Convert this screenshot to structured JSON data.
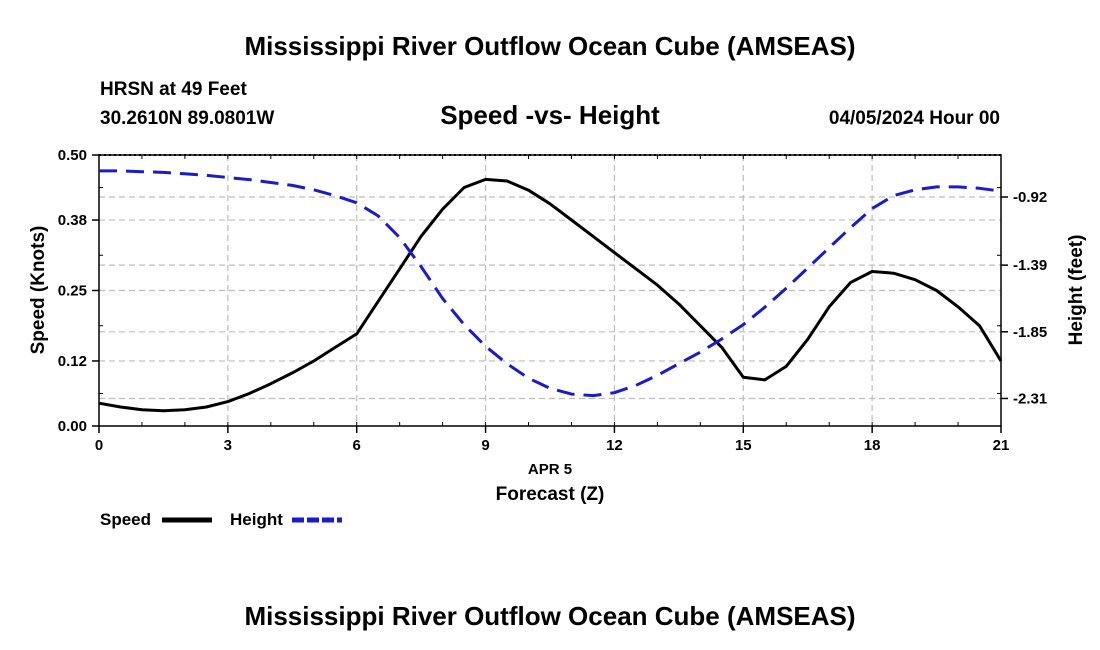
{
  "title": "Mississippi River Outflow Ocean Cube (AMSEAS)",
  "footer_title": "Mississippi River Outflow Ocean Cube (AMSEAS)",
  "station": "HRSN at 49 Feet",
  "coordinates": "30.2610N  89.0801W",
  "date_label": "04/05/2024 Hour 00",
  "colors": {
    "speed": "#000000",
    "height": "#1a1ad0",
    "grid": "#bdbdbd"
  },
  "chart_data": {
    "type": "line",
    "title": "Speed -vs- Height",
    "xlabel": "Forecast (Z)",
    "xlabel_date": "APR 5",
    "ylabel_left": "Speed (Knots)",
    "ylabel_right": "Height (feet)",
    "xlim": [
      0,
      21
    ],
    "x_ticks": [
      0,
      3,
      6,
      9,
      12,
      15,
      18,
      21
    ],
    "x_tick_labels": [
      "0",
      "3",
      "6",
      "9",
      "12",
      "15",
      "18",
      "21"
    ],
    "ylim_left": [
      0,
      0.5
    ],
    "y_left_ticks": [
      0,
      0.12,
      0.25,
      0.38,
      0.5
    ],
    "y_left_tick_labels": [
      "0.00",
      "0.12",
      "0.25",
      "0.38",
      "0.50"
    ],
    "ylim_right": [
      -2.5,
      -0.63
    ],
    "y_right_ticks": [
      -2.31,
      -1.85,
      -1.39,
      -0.92
    ],
    "y_right_tick_labels": [
      "-2.31",
      "-1.85",
      "-1.39",
      "-0.92"
    ],
    "grid": true,
    "legend_position": "bottom-left",
    "series": [
      {
        "name": "Speed",
        "axis": "left",
        "style": "solid",
        "x": [
          0,
          0.5,
          1,
          1.5,
          2,
          2.5,
          3,
          3.5,
          4,
          4.5,
          5,
          5.5,
          6,
          6.5,
          7,
          7.5,
          8,
          8.5,
          9,
          9.5,
          10,
          10.5,
          11,
          11.5,
          12,
          12.5,
          13,
          13.5,
          14,
          14.5,
          15,
          15.5,
          16,
          16.5,
          17,
          17.5,
          18,
          18.5,
          19,
          19.5,
          20,
          20.5,
          21
        ],
        "values": [
          0.042,
          0.035,
          0.03,
          0.028,
          0.03,
          0.035,
          0.045,
          0.06,
          0.078,
          0.098,
          0.12,
          0.145,
          0.17,
          0.23,
          0.29,
          0.35,
          0.4,
          0.44,
          0.455,
          0.452,
          0.435,
          0.41,
          0.38,
          0.35,
          0.32,
          0.29,
          0.26,
          0.225,
          0.185,
          0.145,
          0.09,
          0.085,
          0.11,
          0.16,
          0.22,
          0.265,
          0.285,
          0.282,
          0.27,
          0.25,
          0.22,
          0.185,
          0.12
        ]
      },
      {
        "name": "Height",
        "axis": "right",
        "style": "dashed",
        "x": [
          0,
          0.5,
          1,
          1.5,
          2,
          2.5,
          3,
          3.5,
          4,
          4.5,
          5,
          5.5,
          6,
          6.5,
          7,
          7.5,
          8,
          8.5,
          9,
          9.5,
          10,
          10.5,
          11,
          11.5,
          12,
          12.5,
          13,
          13.5,
          14,
          14.5,
          15,
          15.5,
          16,
          16.5,
          17,
          17.5,
          18,
          18.5,
          19,
          19.5,
          20,
          20.5,
          21
        ],
        "values": [
          -0.74,
          -0.74,
          -0.745,
          -0.75,
          -0.76,
          -0.77,
          -0.785,
          -0.8,
          -0.82,
          -0.84,
          -0.87,
          -0.91,
          -0.96,
          -1.05,
          -1.2,
          -1.4,
          -1.62,
          -1.8,
          -1.95,
          -2.07,
          -2.17,
          -2.24,
          -2.28,
          -2.29,
          -2.27,
          -2.22,
          -2.15,
          -2.07,
          -1.99,
          -1.9,
          -1.8,
          -1.68,
          -1.55,
          -1.41,
          -1.27,
          -1.13,
          -1.0,
          -0.91,
          -0.87,
          -0.85,
          -0.85,
          -0.86,
          -0.88
        ]
      }
    ]
  }
}
